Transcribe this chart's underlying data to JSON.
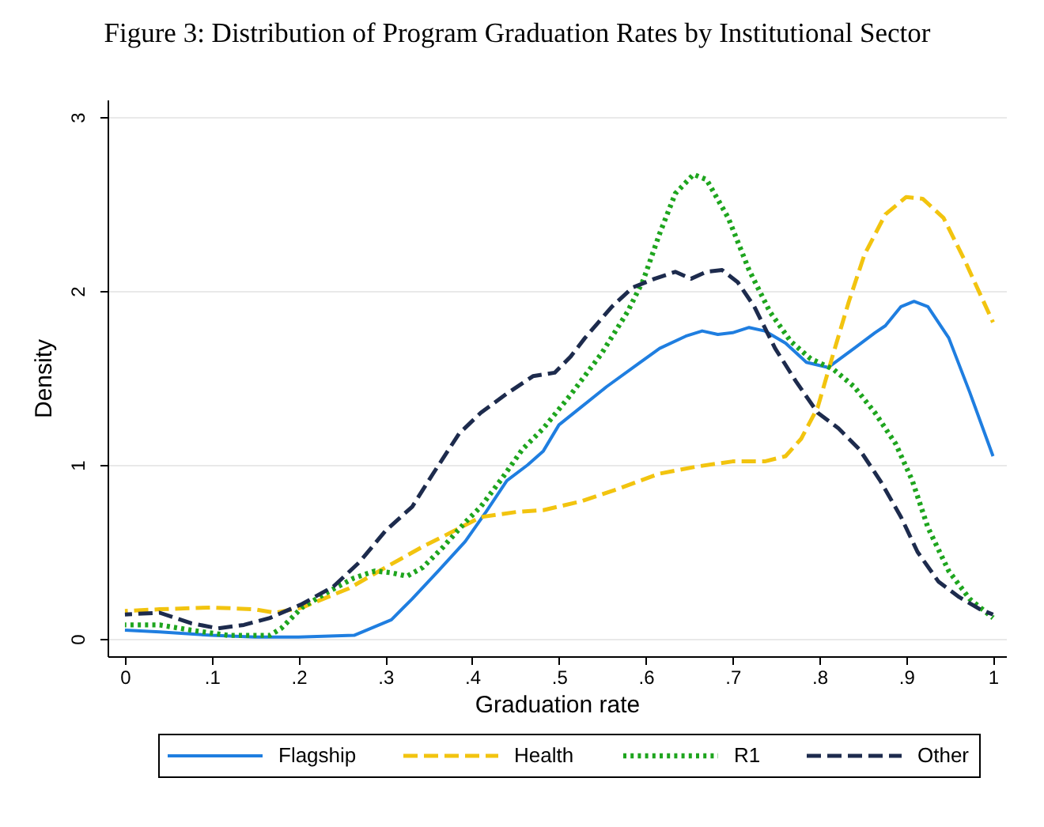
{
  "chart_data": {
    "type": "line",
    "title": "Figure 3: Distribution of Program Graduation Rates by Institutional Sector",
    "xlabel": "Graduation rate",
    "ylabel": "Density",
    "xlim": [
      -0.02,
      1.015
    ],
    "ylim": [
      -0.1,
      3.1
    ],
    "xticks": [
      0,
      {
        "value": 0.1,
        "label": ".1"
      },
      {
        "value": 0.2,
        "label": ".2"
      },
      {
        "value": 0.3,
        "label": ".3"
      },
      {
        "value": 0.4,
        "label": ".4"
      },
      {
        "value": 0.5,
        "label": ".5"
      },
      {
        "value": 0.6,
        "label": ".6"
      },
      {
        "value": 0.7,
        "label": ".7"
      },
      {
        "value": 0.8,
        "label": ".8"
      },
      {
        "value": 0.9,
        "label": ".9"
      },
      1
    ],
    "yticks": [
      0,
      1,
      2,
      3
    ],
    "grid": "y",
    "legend": "bottom",
    "series": [
      {
        "name": "Flagship",
        "color": "#1f7ee0",
        "line_style": "solid",
        "x": [
          0,
          0.04,
          0.1,
          0.15,
          0.2,
          0.264,
          0.307,
          0.331,
          0.361,
          0.392,
          0.416,
          0.44,
          0.464,
          0.482,
          0.5,
          0.525,
          0.555,
          0.591,
          0.616,
          0.646,
          0.665,
          0.683,
          0.7,
          0.719,
          0.737,
          0.761,
          0.785,
          0.81,
          0.84,
          0.864,
          0.876,
          0.894,
          0.909,
          0.925,
          0.949,
          0.973,
          1.0
        ],
        "values": [
          0.05,
          0.04,
          0.02,
          0.01,
          0.01,
          0.02,
          0.11,
          0.23,
          0.39,
          0.56,
          0.73,
          0.91,
          1.0,
          1.08,
          1.23,
          1.33,
          1.45,
          1.58,
          1.67,
          1.74,
          1.77,
          1.75,
          1.76,
          1.79,
          1.77,
          1.7,
          1.59,
          1.56,
          1.67,
          1.76,
          1.8,
          1.91,
          1.94,
          1.91,
          1.73,
          1.42,
          1.05
        ]
      },
      {
        "name": "Health",
        "color": "#f2c40f",
        "line_style": "dashed",
        "x": [
          0,
          0.04,
          0.1,
          0.149,
          0.173,
          0.204,
          0.258,
          0.3,
          0.343,
          0.379,
          0.41,
          0.452,
          0.482,
          0.525,
          0.567,
          0.616,
          0.658,
          0.7,
          0.737,
          0.761,
          0.779,
          0.798,
          0.816,
          0.834,
          0.852,
          0.876,
          0.9,
          0.919,
          0.943,
          0.967,
          1.0
        ],
        "values": [
          0.16,
          0.17,
          0.18,
          0.17,
          0.15,
          0.18,
          0.29,
          0.41,
          0.53,
          0.62,
          0.7,
          0.73,
          0.74,
          0.79,
          0.86,
          0.95,
          0.99,
          1.02,
          1.02,
          1.05,
          1.15,
          1.33,
          1.64,
          1.94,
          2.21,
          2.44,
          2.54,
          2.53,
          2.42,
          2.18,
          1.82
        ]
      },
      {
        "name": "R1",
        "color": "#1ea51e",
        "line_style": "dotted",
        "x": [
          0,
          0.04,
          0.076,
          0.119,
          0.167,
          0.18,
          0.204,
          0.234,
          0.264,
          0.288,
          0.307,
          0.325,
          0.343,
          0.367,
          0.392,
          0.41,
          0.434,
          0.458,
          0.482,
          0.513,
          0.549,
          0.579,
          0.597,
          0.616,
          0.634,
          0.655,
          0.67,
          0.695,
          0.719,
          0.743,
          0.767,
          0.79,
          0.816,
          0.84,
          0.864,
          0.888,
          0.907,
          0.925,
          0.949,
          0.973,
          1.0
        ],
        "values": [
          0.08,
          0.08,
          0.05,
          0.02,
          0.02,
          0.06,
          0.18,
          0.27,
          0.35,
          0.39,
          0.38,
          0.36,
          0.41,
          0.53,
          0.67,
          0.76,
          0.92,
          1.09,
          1.21,
          1.4,
          1.64,
          1.88,
          2.06,
          2.33,
          2.56,
          2.67,
          2.64,
          2.42,
          2.12,
          1.88,
          1.71,
          1.61,
          1.55,
          1.45,
          1.3,
          1.12,
          0.91,
          0.64,
          0.39,
          0.23,
          0.12
        ]
      },
      {
        "name": "Other",
        "color": "#1d2b4d",
        "line_style": "dashed",
        "x": [
          0,
          0.04,
          0.076,
          0.107,
          0.137,
          0.167,
          0.204,
          0.24,
          0.27,
          0.3,
          0.331,
          0.355,
          0.385,
          0.41,
          0.44,
          0.47,
          0.495,
          0.513,
          0.53,
          0.561,
          0.585,
          0.61,
          0.634,
          0.652,
          0.67,
          0.688,
          0.706,
          0.725,
          0.749,
          0.773,
          0.798,
          0.822,
          0.846,
          0.87,
          0.894,
          0.913,
          0.937,
          0.961,
          0.985,
          1.0
        ],
        "values": [
          0.14,
          0.15,
          0.09,
          0.06,
          0.08,
          0.12,
          0.2,
          0.3,
          0.44,
          0.62,
          0.76,
          0.95,
          1.18,
          1.3,
          1.41,
          1.51,
          1.53,
          1.62,
          1.73,
          1.91,
          2.02,
          2.07,
          2.11,
          2.07,
          2.11,
          2.12,
          2.05,
          1.91,
          1.67,
          1.48,
          1.3,
          1.21,
          1.09,
          0.91,
          0.7,
          0.5,
          0.33,
          0.24,
          0.17,
          0.14
        ]
      }
    ]
  }
}
